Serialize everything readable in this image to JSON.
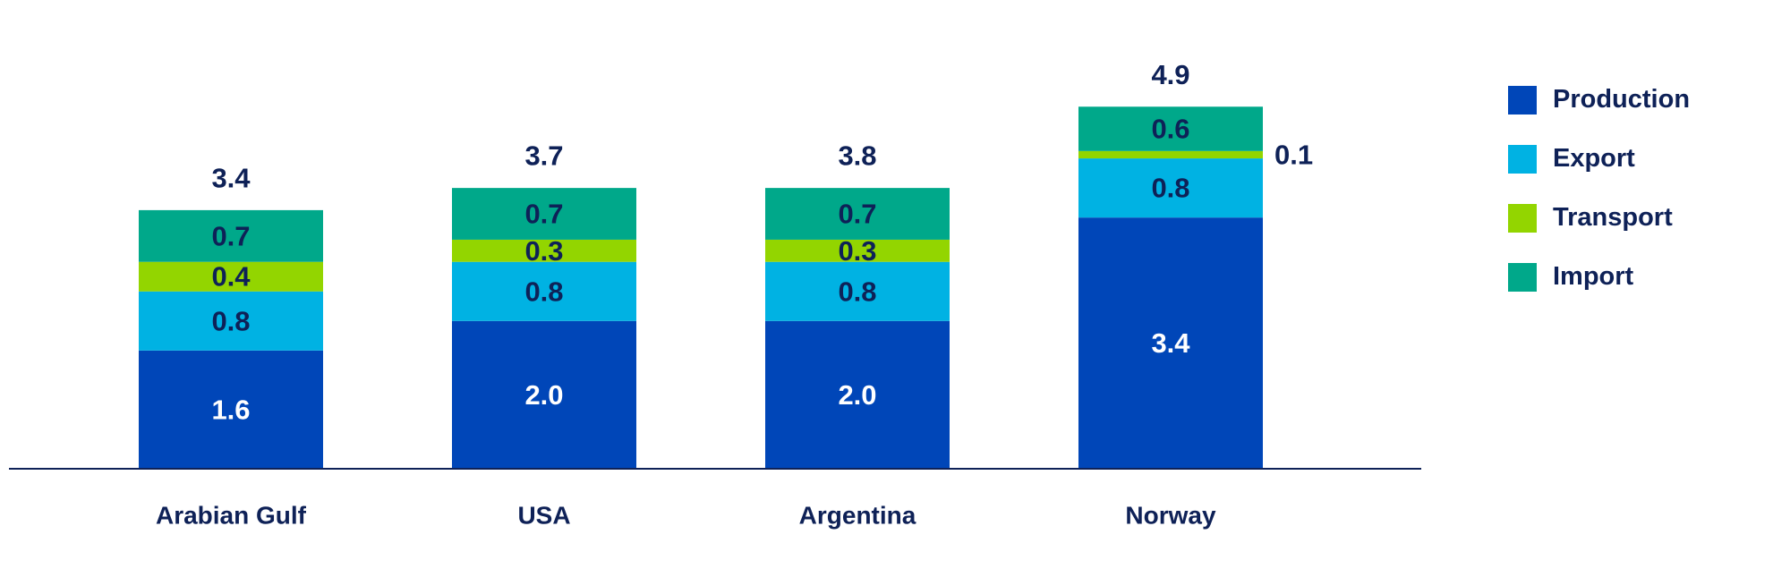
{
  "chart_data": {
    "type": "bar",
    "stacked": true,
    "categories": [
      "Arabian Gulf",
      "USA",
      "Argentina",
      "Norway"
    ],
    "series": [
      {
        "name": "Production",
        "values": [
          1.6,
          2.0,
          2.0,
          3.4
        ],
        "color": "#0046b8"
      },
      {
        "name": "Export",
        "values": [
          0.8,
          0.8,
          0.8,
          0.8
        ],
        "color": "#00b2e3"
      },
      {
        "name": "Transport",
        "values": [
          0.4,
          0.3,
          0.3,
          0.1
        ],
        "color": "#93d500"
      },
      {
        "name": "Import",
        "values": [
          0.7,
          0.7,
          0.7,
          0.6
        ],
        "color": "#00a88a"
      }
    ],
    "totals": [
      3.4,
      3.7,
      3.8,
      4.9
    ],
    "legend_position": "right",
    "grid": false
  },
  "colors": {
    "text": "#0e2157",
    "axis": "#0e2157"
  }
}
